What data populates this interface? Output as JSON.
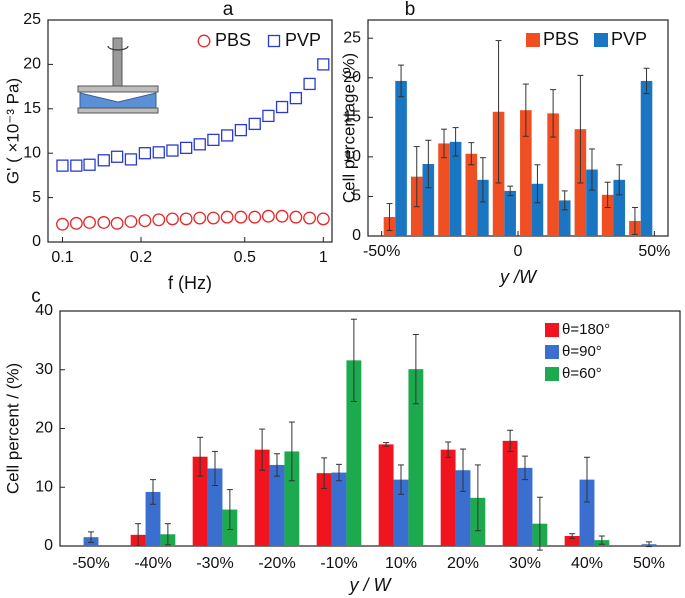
{
  "chart_data": [
    {
      "type": "scatter",
      "panel": "a",
      "x_label": "f (Hz)",
      "y_label": "G' ( ×10⁻³ Pa)",
      "xscale": "log",
      "xlim": [
        0.088,
        1.08
      ],
      "xticks": [
        0.1,
        0.2,
        0.5,
        1
      ],
      "ylim": [
        0,
        25
      ],
      "yticks": [
        0,
        5,
        10,
        15,
        20,
        25
      ],
      "legend": "upper right",
      "x": [
        0.1,
        0.113,
        0.127,
        0.144,
        0.162,
        0.183,
        0.207,
        0.234,
        0.264,
        0.298,
        0.336,
        0.379,
        0.428,
        0.483,
        0.546,
        0.616,
        0.695,
        0.785,
        0.886,
        1.0
      ],
      "series": [
        {
          "name": "PBS",
          "color": "#e8262a",
          "marker": "circle",
          "values": [
            2.0,
            2.1,
            2.2,
            2.2,
            2.1,
            2.3,
            2.4,
            2.5,
            2.6,
            2.6,
            2.7,
            2.7,
            2.8,
            2.8,
            2.8,
            2.9,
            2.9,
            2.8,
            2.7,
            2.6
          ]
        },
        {
          "name": "PVP",
          "color": "#2a3bd0",
          "marker": "square",
          "values": [
            8.6,
            8.6,
            8.7,
            9.2,
            9.6,
            9.3,
            10.0,
            10.1,
            10.3,
            10.6,
            11.0,
            11.5,
            12.0,
            12.6,
            13.3,
            14.2,
            15.2,
            16.2,
            17.8,
            20.0
          ]
        }
      ]
    },
    {
      "type": "bar",
      "panel": "b",
      "x_label": "y /W",
      "y_label": "Cell percentage (%)",
      "xlim": [
        -55,
        55
      ],
      "xticks": [
        {
          "value": -50,
          "label": "-50%"
        },
        0,
        {
          "value": 50,
          "label": "50%"
        }
      ],
      "ylim": [
        0,
        27.3
      ],
      "yticks": [
        0,
        5,
        10,
        15,
        20,
        25
      ],
      "legend": "upper right",
      "x": [
        -45,
        -35,
        -25,
        -15,
        -5,
        5,
        15,
        25,
        35,
        45
      ],
      "series": [
        {
          "name": "PBS",
          "color": "#f04e23",
          "values": [
            2.4,
            7.5,
            11.7,
            10.4,
            15.7,
            15.9,
            15.5,
            13.5,
            5.2,
            1.9
          ],
          "errors": [
            1.7,
            3.8,
            1.8,
            1.4,
            9.0,
            3.3,
            3.0,
            6.8,
            1.6,
            1.7
          ]
        },
        {
          "name": "PVP",
          "color": "#1a75c2",
          "values": [
            19.6,
            9.1,
            11.9,
            7.1,
            5.7,
            6.6,
            4.5,
            8.4,
            7.1,
            19.6
          ],
          "errors": [
            2.0,
            3.0,
            1.8,
            2.8,
            0.6,
            2.4,
            1.2,
            2.6,
            1.9,
            1.6
          ]
        }
      ]
    },
    {
      "type": "bar",
      "panel": "c",
      "x_label": "y / W",
      "y_label": "Cell percent / (%)",
      "ylim": [
        0,
        40
      ],
      "yticks": [
        0,
        10,
        20,
        30,
        40
      ],
      "legend": "upper right",
      "categories": [
        "-50%",
        "-40%",
        "-30%",
        "-20%",
        "-10%",
        "10%",
        "20%",
        "30%",
        "40%",
        "50%"
      ],
      "series": [
        {
          "name": "θ=180°",
          "color": "#f0141e",
          "values": [
            0,
            1.9,
            15.2,
            16.4,
            12.4,
            17.3,
            16.4,
            17.9,
            1.7,
            0
          ],
          "errors": [
            0,
            1.9,
            3.3,
            3.5,
            2.6,
            0.3,
            1.3,
            1.8,
            0.4,
            0
          ]
        },
        {
          "name": "θ=90°",
          "color": "#3a6fd0",
          "values": [
            1.5,
            9.2,
            13.2,
            13.8,
            12.5,
            11.3,
            12.9,
            13.3,
            11.3,
            0.3
          ],
          "errors": [
            0.9,
            2.1,
            2.9,
            1.9,
            1.4,
            2.5,
            3.6,
            2.0,
            3.8,
            0.4
          ]
        },
        {
          "name": "θ=60°",
          "color": "#1daa4f",
          "values": [
            0,
            2.0,
            6.2,
            16.1,
            31.6,
            30.1,
            8.2,
            3.8,
            1.0,
            0
          ],
          "errors": [
            0,
            1.8,
            3.4,
            5.0,
            7.0,
            5.9,
            5.6,
            4.5,
            0.7,
            0
          ]
        }
      ]
    }
  ]
}
